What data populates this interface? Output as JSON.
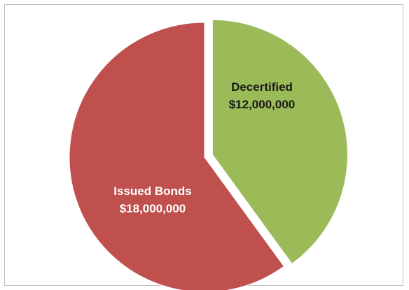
{
  "chart_data": {
    "type": "pie",
    "slices": [
      {
        "label": "Decertified",
        "value_label": "$12,000,000",
        "value": 12000000,
        "color": "#9BBB59",
        "label_color": "#1a1a1a",
        "exploded": true
      },
      {
        "label": "Issued Bonds",
        "value_label": "$18,000,000",
        "value": 18000000,
        "color": "#C0504D",
        "label_color": "#ffffff",
        "exploded": false
      }
    ],
    "start_angle_deg": 0,
    "direction": "clockwise",
    "legend": "none"
  }
}
